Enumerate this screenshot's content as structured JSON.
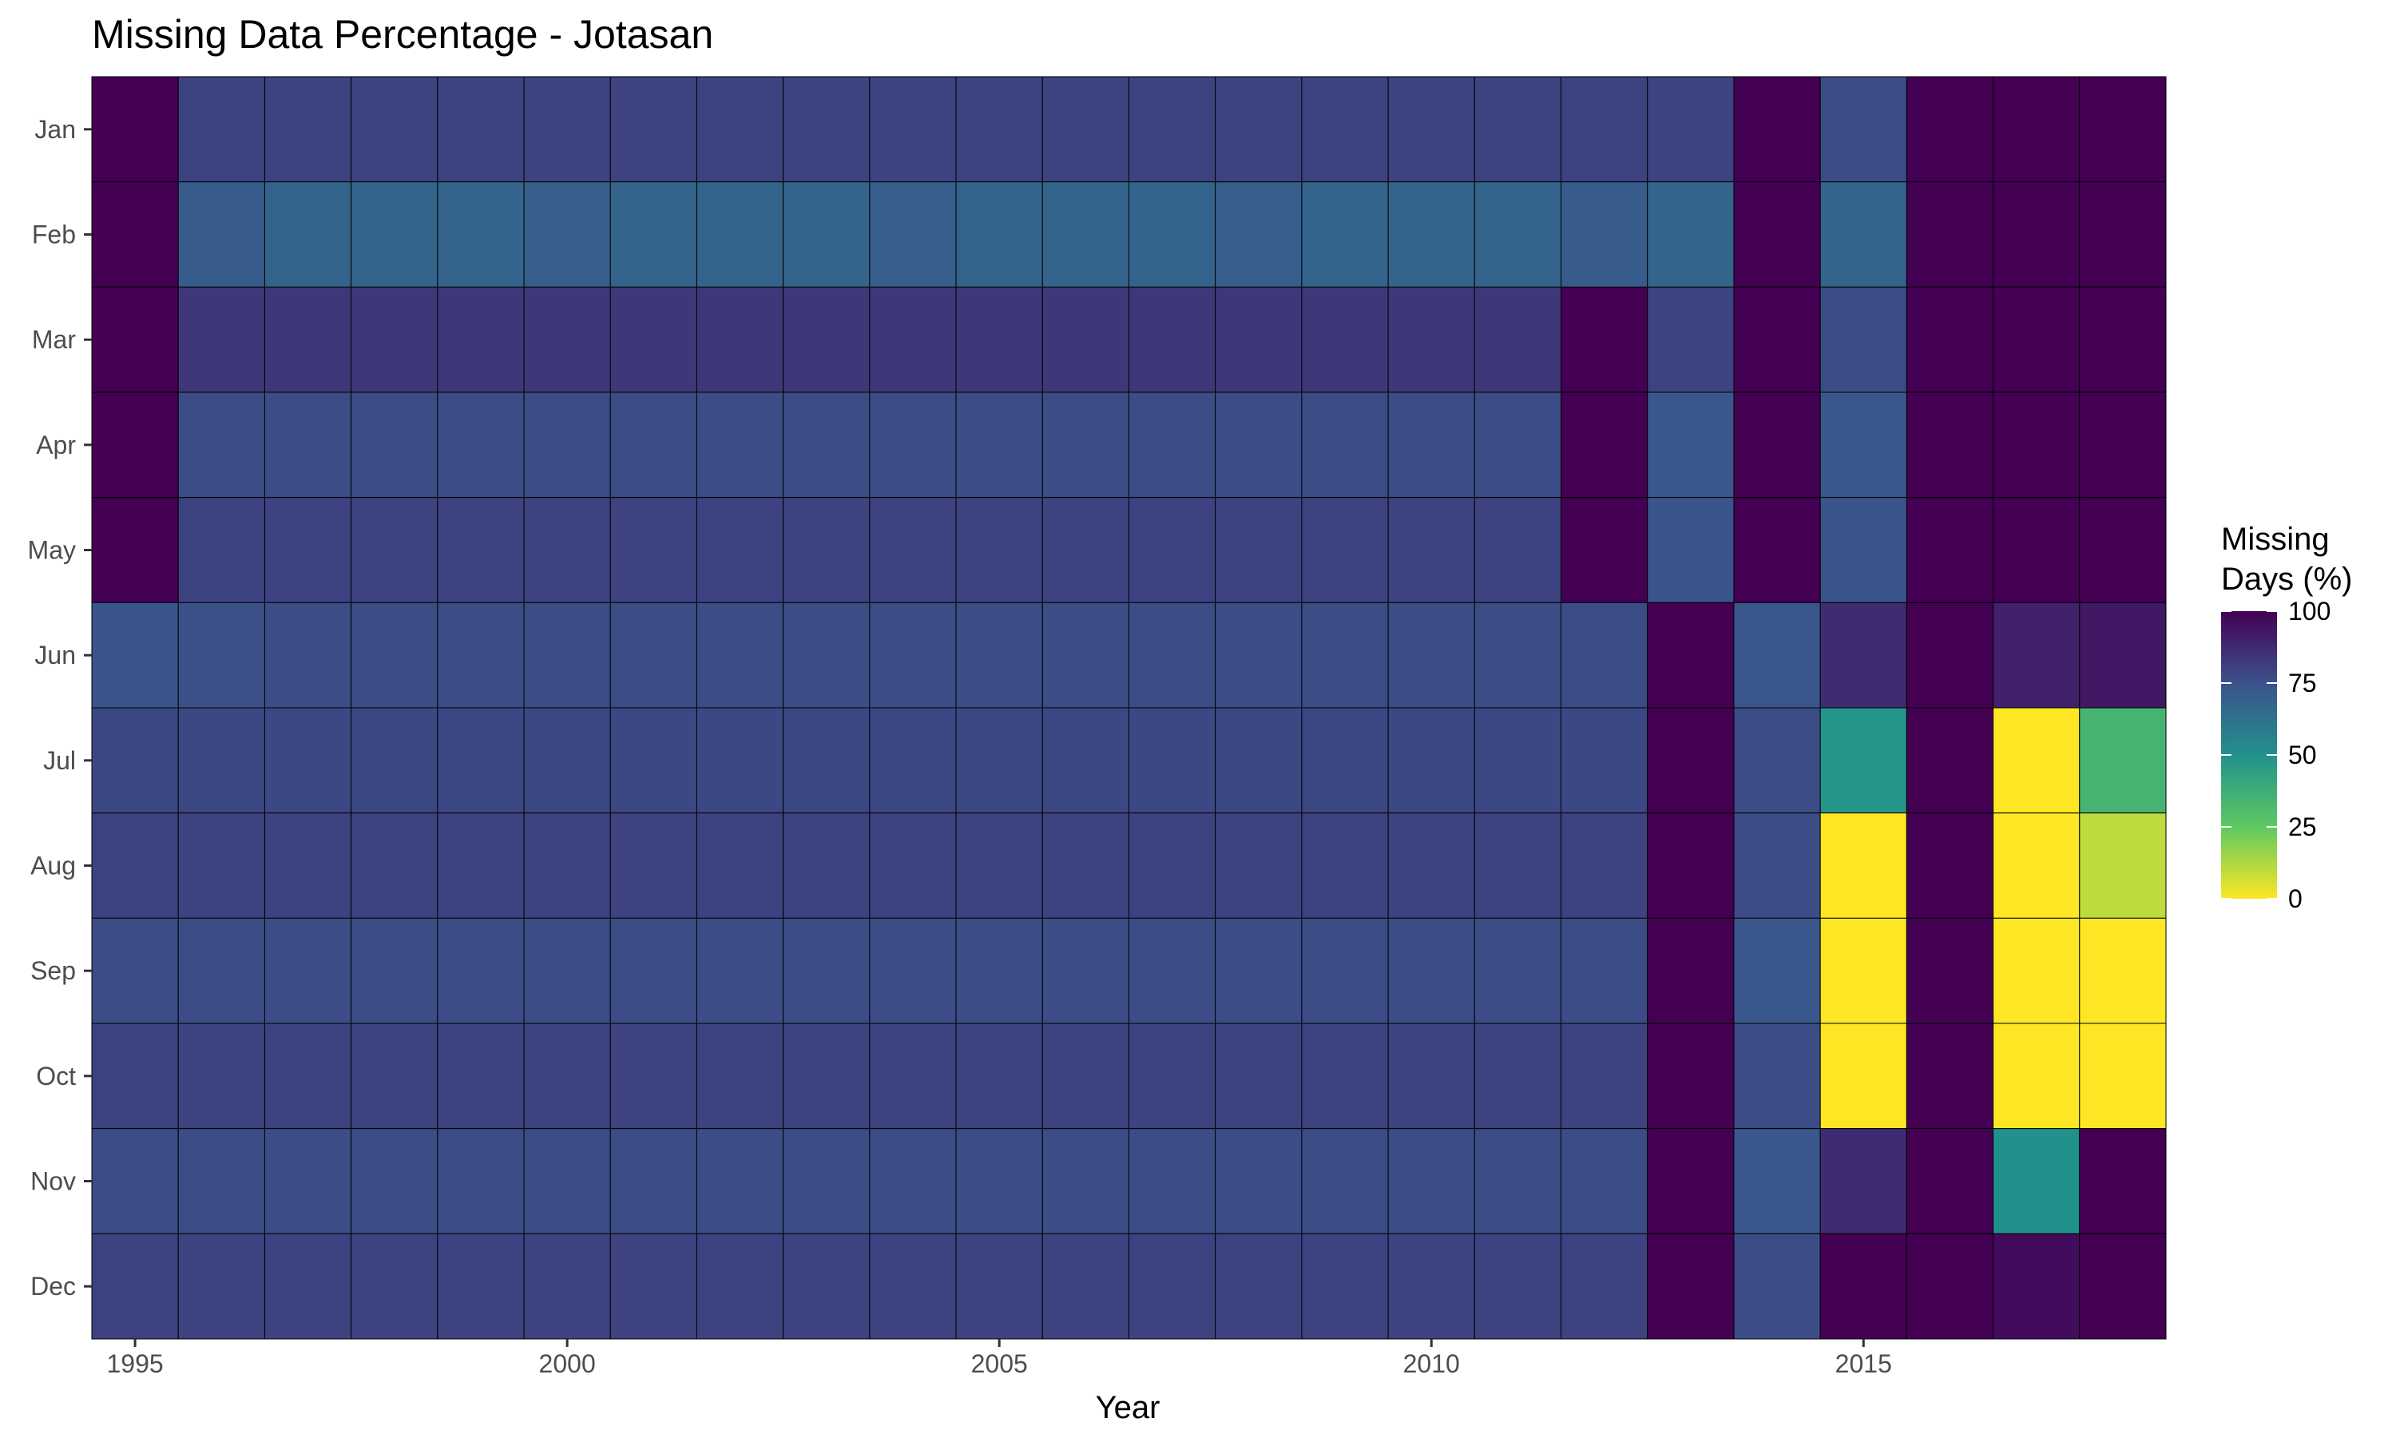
{
  "chart_data": {
    "type": "heatmap",
    "title": "Missing Data Percentage - Jotasan",
    "xlabel": "Year",
    "ylabel": "",
    "x": [
      1995,
      1996,
      1997,
      1998,
      1999,
      2000,
      2001,
      2002,
      2003,
      2004,
      2005,
      2006,
      2007,
      2008,
      2009,
      2010,
      2011,
      2012,
      2013,
      2014,
      2015,
      2016,
      2017,
      2018
    ],
    "x_ticks": [
      1995,
      2000,
      2005,
      2010,
      2015
    ],
    "y": [
      "Jan",
      "Feb",
      "Mar",
      "Apr",
      "May",
      "Jun",
      "Jul",
      "Aug",
      "Sep",
      "Oct",
      "Nov",
      "Dec"
    ],
    "legend": {
      "title_lines": [
        "Missing",
        "Days (%)"
      ],
      "ticks": [
        0,
        25,
        50,
        75,
        100
      ],
      "placement": "right",
      "reversed": true
    },
    "color_scale": [
      "#fde725",
      "#5ec962",
      "#21918c",
      "#3b528b",
      "#440154"
    ],
    "zlim": [
      0,
      100
    ],
    "grid": false,
    "values": [
      [
        100,
        80,
        80,
        80,
        80,
        80,
        80,
        80,
        80,
        80,
        80,
        80,
        80,
        80,
        80,
        80,
        80,
        80,
        80,
        100,
        77,
        100,
        100,
        100
      ],
      [
        100,
        71,
        68,
        68,
        68,
        70,
        68,
        68,
        68,
        70,
        68,
        68,
        68,
        70,
        68,
        68,
        68,
        71,
        68,
        100,
        68,
        100,
        100,
        100
      ],
      [
        100,
        83,
        83,
        83,
        83,
        83,
        83,
        83,
        83,
        83,
        83,
        83,
        83,
        83,
        83,
        83,
        83,
        100,
        80,
        100,
        77,
        100,
        100,
        100
      ],
      [
        100,
        77,
        77,
        77,
        77,
        77,
        77,
        77,
        77,
        77,
        77,
        77,
        77,
        77,
        77,
        77,
        77,
        100,
        73,
        100,
        73,
        100,
        100,
        100
      ],
      [
        100,
        80,
        80,
        80,
        80,
        80,
        80,
        80,
        80,
        80,
        80,
        80,
        80,
        80,
        80,
        80,
        80,
        100,
        74,
        100,
        74,
        100,
        100,
        100
      ],
      [
        74,
        76,
        77,
        77,
        77,
        77,
        77,
        77,
        77,
        77,
        77,
        77,
        77,
        77,
        77,
        77,
        77,
        77,
        100,
        73,
        87,
        100,
        90,
        93
      ],
      [
        78,
        78,
        78,
        78,
        78,
        78,
        78,
        78,
        78,
        78,
        78,
        78,
        78,
        78,
        78,
        78,
        78,
        78,
        100,
        77,
        48,
        100,
        0,
        35
      ],
      [
        80,
        80,
        80,
        80,
        80,
        80,
        80,
        80,
        80,
        80,
        80,
        80,
        80,
        80,
        80,
        80,
        80,
        80,
        100,
        77,
        0,
        100,
        0,
        10
      ],
      [
        77,
        77,
        77,
        77,
        77,
        77,
        77,
        77,
        77,
        77,
        77,
        77,
        77,
        77,
        77,
        77,
        77,
        77,
        100,
        73,
        0,
        100,
        0,
        0
      ],
      [
        80,
        80,
        80,
        80,
        80,
        80,
        80,
        80,
        80,
        80,
        80,
        80,
        80,
        80,
        80,
        80,
        80,
        80,
        100,
        77,
        0,
        100,
        0,
        0
      ],
      [
        77,
        77,
        77,
        77,
        77,
        77,
        77,
        77,
        77,
        77,
        77,
        77,
        77,
        77,
        77,
        77,
        77,
        77,
        100,
        73,
        87,
        100,
        50,
        100
      ],
      [
        80,
        80,
        80,
        80,
        80,
        80,
        80,
        80,
        80,
        80,
        80,
        80,
        80,
        80,
        80,
        80,
        80,
        80,
        100,
        77,
        100,
        100,
        97,
        100
      ]
    ]
  }
}
